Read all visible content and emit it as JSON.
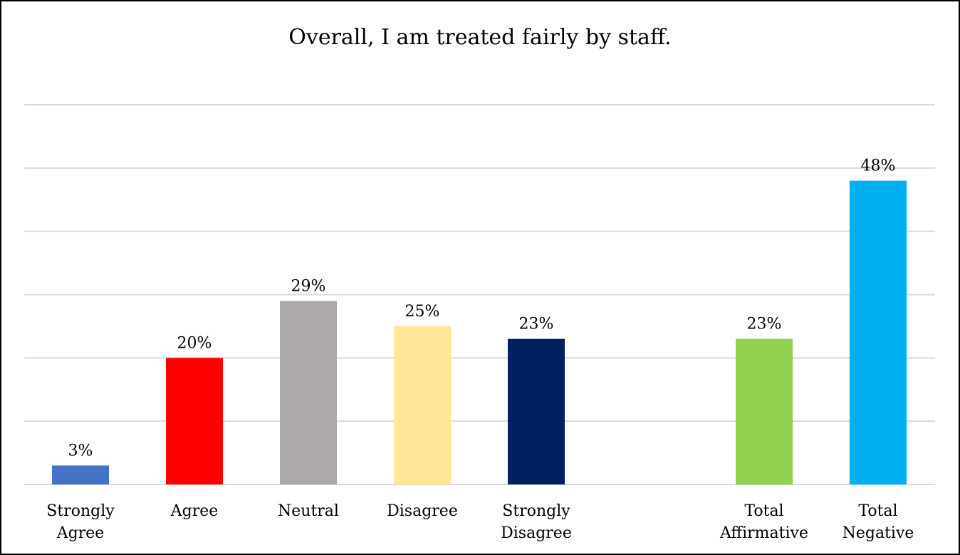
{
  "chart_data": {
    "type": "bar",
    "title": "Overall, I am treated fairly by staff.",
    "categories": [
      {
        "lines": [
          "Strongly",
          "Agree"
        ],
        "group": 0
      },
      {
        "lines": [
          "Agree"
        ],
        "group": 0
      },
      {
        "lines": [
          "Neutral"
        ],
        "group": 0
      },
      {
        "lines": [
          "Disagree"
        ],
        "group": 0
      },
      {
        "lines": [
          "Strongly",
          "Disagree"
        ],
        "group": 0
      },
      {
        "lines": [
          "Total",
          "Affirmative"
        ],
        "group": 1
      },
      {
        "lines": [
          "Total",
          "Negative"
        ],
        "group": 1
      }
    ],
    "values": [
      3,
      20,
      29,
      25,
      23,
      23,
      48
    ],
    "data_labels": [
      "3%",
      "20%",
      "29%",
      "25%",
      "23%",
      "23%",
      "48%"
    ],
    "colors": [
      "#4472C4",
      "#FF0000",
      "#AEAAAA",
      "#FFE699",
      "#002060",
      "#92D050",
      "#00B0F0"
    ],
    "ylim": [
      0,
      60
    ],
    "gridlines": true,
    "gridline_step": 10,
    "xlabel": "",
    "ylabel": ""
  }
}
